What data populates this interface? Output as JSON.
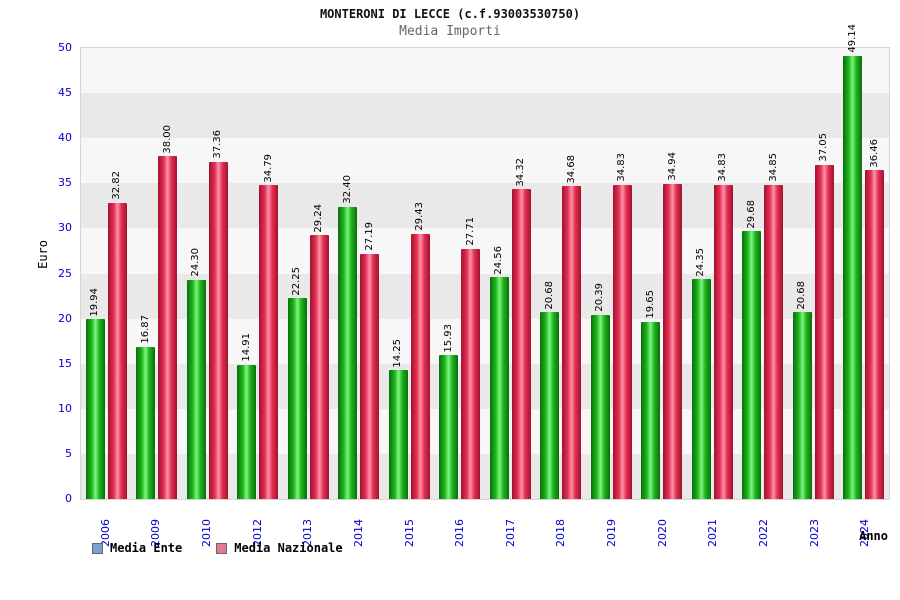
{
  "chart_data": {
    "type": "bar",
    "title": "MONTERONI DI LECCE (c.f.93003530750)",
    "subtitle": "Media Importi",
    "xlabel": "Anno",
    "ylabel": "Euro",
    "ylim": [
      0,
      50
    ],
    "ytick_step": 5,
    "grid": "alternating-horizontal-bands",
    "legend_position": "bottom-left",
    "categories": [
      "2006",
      "2009",
      "2010",
      "2012",
      "2013",
      "2014",
      "2015",
      "2016",
      "2017",
      "2018",
      "2019",
      "2020",
      "2021",
      "2022",
      "2023",
      "2024"
    ],
    "series": [
      {
        "name": "Media Ente",
        "color_key": "ente",
        "values": [
          19.94,
          16.87,
          24.3,
          14.91,
          22.25,
          32.4,
          14.25,
          15.93,
          24.56,
          20.68,
          20.39,
          19.65,
          24.35,
          29.68,
          20.68,
          49.14
        ]
      },
      {
        "name": "Media Nazionale",
        "color_key": "nazionale",
        "values": [
          32.82,
          38.0,
          37.36,
          34.79,
          29.24,
          27.19,
          29.43,
          27.71,
          34.32,
          34.68,
          34.83,
          34.94,
          34.83,
          34.85,
          37.05,
          36.46
        ]
      }
    ],
    "legend": [
      {
        "label": "Media Ente",
        "swatch_color": "#7b9fd4"
      },
      {
        "label": "Media Nazionale",
        "swatch_color": "#e2798f"
      }
    ],
    "colors": {
      "bar_ente": "#1eb41e",
      "bar_nazionale": "#e03055",
      "axis_text": "#0000cc",
      "value_label": "#000000",
      "band_dark": "#e9e9e9",
      "band_light": "#f7f7f7"
    }
  }
}
